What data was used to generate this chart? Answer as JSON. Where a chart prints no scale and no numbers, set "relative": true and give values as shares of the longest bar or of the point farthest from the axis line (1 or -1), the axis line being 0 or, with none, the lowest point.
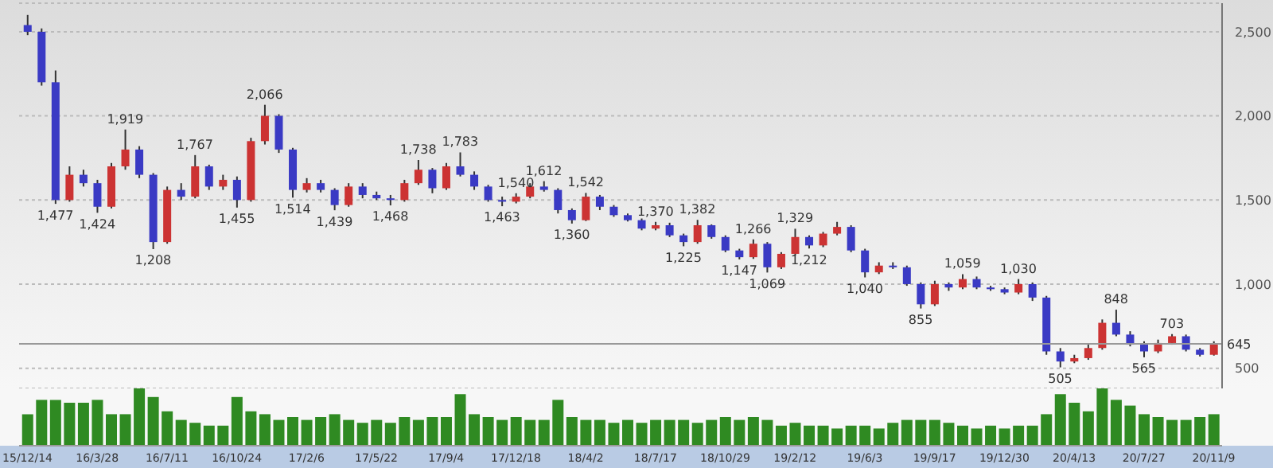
{
  "chart_data": [
    {
      "type": "candlestick",
      "ohlc": [
        [
          2540,
          2600,
          2480,
          2500
        ],
        [
          2500,
          2520,
          2180,
          2200
        ],
        [
          2200,
          2270,
          1477,
          1500
        ],
        [
          1500,
          1700,
          1490,
          1650
        ],
        [
          1650,
          1680,
          1580,
          1600
        ],
        [
          1600,
          1620,
          1424,
          1460
        ],
        [
          1460,
          1720,
          1450,
          1700
        ],
        [
          1700,
          1919,
          1680,
          1800
        ],
        [
          1800,
          1820,
          1630,
          1650
        ],
        [
          1650,
          1660,
          1208,
          1250
        ],
        [
          1250,
          1580,
          1240,
          1560
        ],
        [
          1560,
          1600,
          1500,
          1520
        ],
        [
          1520,
          1767,
          1510,
          1700
        ],
        [
          1700,
          1710,
          1560,
          1580
        ],
        [
          1580,
          1650,
          1560,
          1620
        ],
        [
          1620,
          1640,
          1455,
          1500
        ],
        [
          1500,
          1870,
          1490,
          1850
        ],
        [
          1850,
          2066,
          1830,
          2000
        ],
        [
          2000,
          2010,
          1780,
          1800
        ],
        [
          1800,
          1810,
          1514,
          1560
        ],
        [
          1560,
          1630,
          1545,
          1600
        ],
        [
          1600,
          1620,
          1545,
          1560
        ],
        [
          1560,
          1570,
          1439,
          1470
        ],
        [
          1470,
          1600,
          1460,
          1580
        ],
        [
          1580,
          1600,
          1510,
          1530
        ],
        [
          1530,
          1550,
          1500,
          1510
        ],
        [
          1510,
          1530,
          1468,
          1500
        ],
        [
          1500,
          1620,
          1490,
          1600
        ],
        [
          1600,
          1738,
          1590,
          1680
        ],
        [
          1680,
          1690,
          1540,
          1570
        ],
        [
          1570,
          1720,
          1560,
          1700
        ],
        [
          1700,
          1783,
          1640,
          1650
        ],
        [
          1650,
          1670,
          1560,
          1580
        ],
        [
          1580,
          1590,
          1490,
          1500
        ],
        [
          1500,
          1520,
          1463,
          1490
        ],
        [
          1490,
          1540,
          1480,
          1520
        ],
        [
          1520,
          1600,
          1510,
          1580
        ],
        [
          1580,
          1612,
          1550,
          1560
        ],
        [
          1560,
          1570,
          1420,
          1440
        ],
        [
          1440,
          1450,
          1360,
          1380
        ],
        [
          1380,
          1542,
          1375,
          1520
        ],
        [
          1520,
          1530,
          1440,
          1460
        ],
        [
          1460,
          1470,
          1400,
          1410
        ],
        [
          1410,
          1420,
          1372,
          1380
        ],
        [
          1380,
          1390,
          1320,
          1330
        ],
        [
          1330,
          1370,
          1320,
          1350
        ],
        [
          1350,
          1365,
          1280,
          1290
        ],
        [
          1290,
          1300,
          1225,
          1250
        ],
        [
          1250,
          1382,
          1240,
          1350
        ],
        [
          1350,
          1355,
          1270,
          1280
        ],
        [
          1280,
          1290,
          1190,
          1200
        ],
        [
          1200,
          1210,
          1147,
          1160
        ],
        [
          1160,
          1266,
          1150,
          1240
        ],
        [
          1240,
          1250,
          1069,
          1100
        ],
        [
          1100,
          1190,
          1090,
          1180
        ],
        [
          1180,
          1329,
          1170,
          1280
        ],
        [
          1280,
          1290,
          1212,
          1230
        ],
        [
          1230,
          1310,
          1220,
          1300
        ],
        [
          1300,
          1370,
          1290,
          1340
        ],
        [
          1340,
          1350,
          1190,
          1200
        ],
        [
          1200,
          1210,
          1040,
          1070
        ],
        [
          1070,
          1130,
          1060,
          1110
        ],
        [
          1110,
          1130,
          1090,
          1100
        ],
        [
          1100,
          1110,
          990,
          1000
        ],
        [
          1000,
          1010,
          855,
          880
        ],
        [
          880,
          1020,
          870,
          1000
        ],
        [
          1000,
          1010,
          960,
          980
        ],
        [
          980,
          1059,
          970,
          1030
        ],
        [
          1030,
          1045,
          970,
          980
        ],
        [
          980,
          990,
          960,
          970
        ],
        [
          970,
          980,
          940,
          950
        ],
        [
          950,
          1030,
          940,
          1000
        ],
        [
          1000,
          1010,
          900,
          920
        ],
        [
          920,
          930,
          580,
          600
        ],
        [
          600,
          620,
          505,
          540
        ],
        [
          540,
          580,
          530,
          560
        ],
        [
          560,
          640,
          550,
          620
        ],
        [
          620,
          790,
          610,
          770
        ],
        [
          770,
          848,
          690,
          700
        ],
        [
          700,
          720,
          630,
          640
        ],
        [
          640,
          660,
          565,
          600
        ],
        [
          600,
          670,
          590,
          650
        ],
        [
          650,
          703,
          640,
          690
        ],
        [
          690,
          700,
          600,
          610
        ],
        [
          610,
          620,
          570,
          580
        ],
        [
          580,
          660,
          575,
          645
        ]
      ],
      "colors": [
        "#3a3ac4",
        "#3a3ac4",
        "#3a3ac4",
        "#cc3333",
        "#3a3ac4",
        "#3a3ac4",
        "#cc3333",
        "#cc3333",
        "#3a3ac4",
        "#3a3ac4",
        "#cc3333",
        "#3a3ac4",
        "#cc3333",
        "#3a3ac4",
        "#cc3333",
        "#3a3ac4",
        "#cc3333",
        "#cc3333",
        "#3a3ac4",
        "#3a3ac4",
        "#cc3333",
        "#3a3ac4",
        "#3a3ac4",
        "#cc3333",
        "#3a3ac4",
        "#3a3ac4",
        "#3a3ac4",
        "#cc3333",
        "#cc3333",
        "#3a3ac4",
        "#cc3333",
        "#3a3ac4",
        "#3a3ac4",
        "#3a3ac4",
        "#3a3ac4",
        "#cc3333",
        "#cc3333",
        "#3a3ac4",
        "#3a3ac4",
        "#3a3ac4",
        "#cc3333",
        "#3a3ac4",
        "#3a3ac4",
        "#3a3ac4",
        "#3a3ac4",
        "#cc3333",
        "#3a3ac4",
        "#3a3ac4",
        "#cc3333",
        "#3a3ac4",
        "#3a3ac4",
        "#3a3ac4",
        "#cc3333",
        "#3a3ac4",
        "#cc3333",
        "#cc3333",
        "#3a3ac4",
        "#cc3333",
        "#cc3333",
        "#3a3ac4",
        "#3a3ac4",
        "#cc3333",
        "#3a3ac4",
        "#3a3ac4",
        "#3a3ac4",
        "#cc3333",
        "#3a3ac4",
        "#cc3333",
        "#3a3ac4",
        "#3a3ac4",
        "#3a3ac4",
        "#cc3333",
        "#3a3ac4",
        "#3a3ac4",
        "#3a3ac4",
        "#cc3333",
        "#cc3333",
        "#cc3333",
        "#3a3ac4",
        "#3a3ac4",
        "#3a3ac4",
        "#cc3333",
        "#cc3333",
        "#3a3ac4",
        "#3a3ac4",
        "#cc3333"
      ],
      "ylim": [
        380,
        2670
      ],
      "yticks": [
        500,
        {
          "value": 1000,
          "label": "1,000"
        },
        {
          "value": 1500,
          "label": "1,500"
        },
        {
          "value": 2000,
          "label": "2,000"
        },
        {
          "value": 2500,
          "label": "2,500"
        }
      ],
      "grid": "y",
      "tick_labels": "y",
      "ref_lines": [
        {
          "axis": "y",
          "value": 645,
          "label": "645",
          "color": "#999999"
        }
      ],
      "annotations": [
        {
          "text": "1,477",
          "y": 1477
        },
        {
          "text": "1,424",
          "y": 1424
        },
        {
          "text": "1,919",
          "y": 1919
        },
        {
          "text": "1,208",
          "y": 1208
        },
        {
          "text": "1,767",
          "y": 1767
        },
        {
          "text": "1,455",
          "y": 1455
        },
        {
          "text": "2,066",
          "y": 2066
        },
        {
          "text": "1,514",
          "y": 1514
        },
        {
          "text": "1,439",
          "y": 1439
        },
        {
          "text": "1,468",
          "y": 1468
        },
        {
          "text": "1,738",
          "y": 1738
        },
        {
          "text": "1,540",
          "y": 1540
        },
        {
          "text": "1,783",
          "y": 1783
        },
        {
          "text": "1,463",
          "y": 1463
        },
        {
          "text": "1,612",
          "y": 1612
        },
        {
          "text": "1,360",
          "y": 1360
        },
        {
          "text": "1,542",
          "y": 1542
        },
        {
          "text": "1,225",
          "y": 1225
        },
        {
          "text": "1,382",
          "y": 1382
        },
        {
          "text": "1,147",
          "y": 1147
        },
        {
          "text": "1,266",
          "y": 1266
        },
        {
          "text": "1,069",
          "y": 1069
        },
        {
          "text": "1,329",
          "y": 1329
        },
        {
          "text": "1,212",
          "y": 1212
        },
        {
          "text": "1,370",
          "y": 1370
        },
        {
          "text": "1,040",
          "y": 1040
        },
        {
          "text": "855",
          "y": 855
        },
        {
          "text": "1,059",
          "y": 1059
        },
        {
          "text": "1,030",
          "y": 1030
        },
        {
          "text": "505",
          "y": 505
        },
        {
          "text": "848",
          "y": 848
        },
        {
          "text": "565",
          "y": 565
        },
        {
          "text": "703",
          "y": 703
        }
      ]
    },
    {
      "type": "bar",
      "categories": [
        "15/12/14",
        null,
        null,
        null,
        null,
        "16/3/28",
        null,
        null,
        null,
        null,
        "16/7/11",
        null,
        null,
        null,
        null,
        "16/10/24",
        null,
        null,
        null,
        null,
        "17/2/6",
        null,
        null,
        null,
        null,
        "17/5/22",
        null,
        null,
        null,
        null,
        "17/9/4",
        null,
        null,
        null,
        null,
        "17/12/18",
        null,
        null,
        null,
        null,
        "18/4/2",
        null,
        null,
        null,
        null,
        "18/7/17",
        null,
        null,
        null,
        null,
        "18/10/29",
        null,
        null,
        null,
        null,
        "19/2/12",
        null,
        null,
        null,
        null,
        "19/6/3",
        null,
        null,
        null,
        null,
        "19/9/17",
        null,
        null,
        null,
        null,
        "19/12/30",
        null,
        null,
        null,
        null,
        "20/4/13",
        null,
        null,
        null,
        null,
        "20/7/27",
        null,
        null,
        null,
        null,
        "20/11/9"
      ],
      "values": [
        0.55,
        0.8,
        0.8,
        0.75,
        0.75,
        0.8,
        0.55,
        0.55,
        1.0,
        0.85,
        0.6,
        0.45,
        0.4,
        0.35,
        0.35,
        0.85,
        0.6,
        0.55,
        0.45,
        0.5,
        0.45,
        0.5,
        0.55,
        0.45,
        0.4,
        0.45,
        0.4,
        0.5,
        0.45,
        0.5,
        0.5,
        0.9,
        0.55,
        0.5,
        0.45,
        0.5,
        0.45,
        0.45,
        0.8,
        0.5,
        0.45,
        0.45,
        0.4,
        0.45,
        0.4,
        0.45,
        0.45,
        0.45,
        0.4,
        0.45,
        0.5,
        0.45,
        0.5,
        0.45,
        0.35,
        0.4,
        0.35,
        0.35,
        0.3,
        0.35,
        0.35,
        0.3,
        0.4,
        0.45,
        0.45,
        0.45,
        0.4,
        0.35,
        0.3,
        0.35,
        0.3,
        0.35,
        0.35,
        0.55,
        0.9,
        0.75,
        0.6,
        1.0,
        0.8,
        0.7,
        0.55,
        0.5,
        0.45,
        0.45,
        0.5,
        0.55
      ],
      "color": "#2f8a22",
      "relative": true,
      "tick_labels": "x"
    }
  ]
}
